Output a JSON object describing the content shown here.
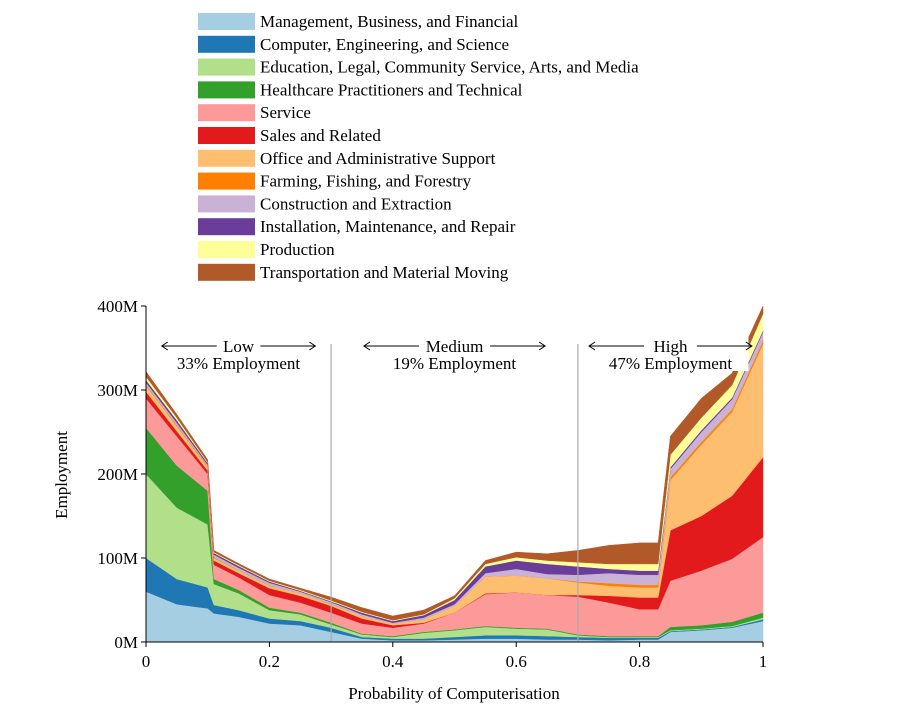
{
  "chart_data": {
    "type": "area",
    "stacked": true,
    "xlabel": "Probability of Computerisation",
    "ylabel": "Employment",
    "xlim": [
      0,
      1
    ],
    "ylim": [
      0,
      400
    ],
    "x_ticks": [
      "0",
      "0.2",
      "0.4",
      "0.6",
      "0.8",
      "1"
    ],
    "x_tick_values": [
      0,
      0.2,
      0.4,
      0.6,
      0.8,
      1
    ],
    "y_ticks": [
      "0M",
      "100M",
      "200M",
      "300M",
      "400M"
    ],
    "y_tick_values": [
      0,
      100,
      200,
      300,
      400
    ],
    "grid": false,
    "legend_placement": "top",
    "regions": [
      {
        "label": "Low",
        "share": "33% Employment",
        "boundary": 0.3
      },
      {
        "label": "Medium",
        "share": "19% Employment",
        "boundary": 0.7
      },
      {
        "label": "High",
        "share": "47% Employment"
      }
    ],
    "x": [
      0,
      0.05,
      0.1,
      0.11,
      0.15,
      0.2,
      0.25,
      0.3,
      0.35,
      0.4,
      0.45,
      0.5,
      0.55,
      0.6,
      0.65,
      0.7,
      0.75,
      0.8,
      0.83,
      0.85,
      0.9,
      0.95,
      1.0
    ],
    "series": [
      {
        "name": "Management, Business, and Financial",
        "color": "#a6cee3",
        "values": [
          60,
          45,
          40,
          34,
          30,
          22,
          20,
          12,
          4,
          2,
          2,
          3,
          4,
          4,
          3,
          3,
          2,
          3,
          3,
          12,
          14,
          17,
          25
        ]
      },
      {
        "name": "Computer, Engineering, and Science",
        "color": "#1f78b4",
        "values": [
          40,
          30,
          25,
          10,
          8,
          6,
          5,
          5,
          2,
          2,
          2,
          3,
          4,
          4,
          4,
          3,
          3,
          2,
          2,
          1,
          1,
          1,
          2
        ]
      },
      {
        "name": "Education, Legal, Community Service, Arts, and Media",
        "color": "#b2df8a",
        "values": [
          100,
          85,
          75,
          25,
          20,
          10,
          8,
          4,
          3,
          2,
          7,
          8,
          10,
          8,
          8,
          2,
          1,
          1,
          1,
          1,
          1,
          1,
          2
        ]
      },
      {
        "name": "Healthcare Practitioners and Technical",
        "color": "#33a02c",
        "values": [
          55,
          50,
          40,
          6,
          4,
          3,
          2,
          2,
          1,
          1,
          1,
          1,
          1,
          1,
          1,
          1,
          1,
          1,
          1,
          4,
          4,
          5,
          6
        ]
      },
      {
        "name": "Service",
        "color": "#fb9a99",
        "values": [
          35,
          35,
          20,
          17,
          15,
          15,
          12,
          12,
          12,
          10,
          10,
          20,
          38,
          42,
          40,
          45,
          40,
          32,
          32,
          55,
          65,
          75,
          90
        ]
      },
      {
        "name": "Sales and Related",
        "color": "#e31a1c",
        "values": [
          8,
          6,
          4,
          5,
          5,
          8,
          8,
          8,
          6,
          3,
          1,
          0,
          1,
          0,
          0,
          2,
          8,
          14,
          14,
          60,
          65,
          75,
          95
        ]
      },
      {
        "name": "Office and Administrative Support",
        "color": "#fdbf6f",
        "values": [
          7,
          6,
          4,
          3,
          3,
          3,
          3,
          2,
          3,
          2,
          4,
          8,
          20,
          20,
          20,
          15,
          12,
          12,
          12,
          60,
          85,
          100,
          135
        ]
      },
      {
        "name": "Farming, Fishing, and Forestry",
        "color": "#ff7f00",
        "values": [
          1,
          1,
          1,
          1,
          0.5,
          0.5,
          0,
          0.5,
          0,
          0,
          0,
          0,
          0,
          0,
          0,
          1,
          3,
          3,
          3,
          3,
          3,
          3,
          4
        ]
      },
      {
        "name": "Construction and Extraction",
        "color": "#cab2d6",
        "values": [
          3,
          3,
          2,
          3,
          3,
          3,
          2,
          2,
          2,
          1,
          2,
          2,
          4,
          8,
          5,
          8,
          12,
          12,
          12,
          10,
          12,
          12,
          10
        ]
      },
      {
        "name": "Installation, Maintenance, and Repair",
        "color": "#6a3d9a",
        "values": [
          3,
          3,
          2,
          2,
          2,
          1.5,
          1,
          1,
          2,
          2,
          3,
          5,
          8,
          10,
          12,
          10,
          5,
          5,
          5,
          2,
          2,
          2,
          2
        ]
      },
      {
        "name": "Production",
        "color": "#ffff99",
        "values": [
          4,
          3,
          1,
          1,
          1,
          1,
          1,
          1,
          1,
          1,
          1,
          2,
          3,
          4,
          4,
          5,
          6,
          8,
          8,
          15,
          15,
          15,
          20
        ]
      },
      {
        "name": "Transportation and Material Moving",
        "color": "#b15928",
        "values": [
          6,
          4,
          3,
          2,
          2,
          2,
          2,
          4,
          5,
          5,
          5,
          3,
          4,
          6,
          8,
          14,
          22,
          25,
          25,
          22,
          23,
          14,
          9
        ]
      }
    ]
  }
}
